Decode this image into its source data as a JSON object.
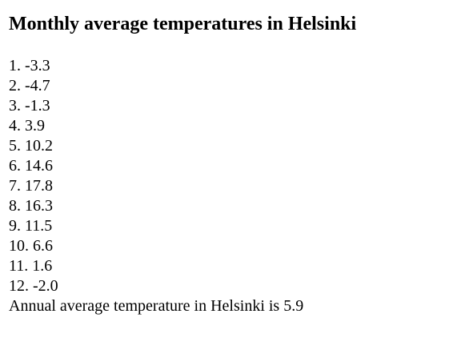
{
  "page": {
    "title": "Monthly average temperatures in Helsinki",
    "months": [
      {
        "label": "1. -3.3"
      },
      {
        "label": "2. -4.7"
      },
      {
        "label": "3. -1.3"
      },
      {
        "label": "4. 3.9"
      },
      {
        "label": "5. 10.2"
      },
      {
        "label": "6. 14.6"
      },
      {
        "label": "7. 17.8"
      },
      {
        "label": "8. 16.3"
      },
      {
        "label": "9. 11.5"
      },
      {
        "label": "10. 6.6"
      },
      {
        "label": "11. 1.6"
      },
      {
        "label": "12. -2.0"
      }
    ],
    "summary": "Annual average temperature in Helsinki is 5.9"
  }
}
